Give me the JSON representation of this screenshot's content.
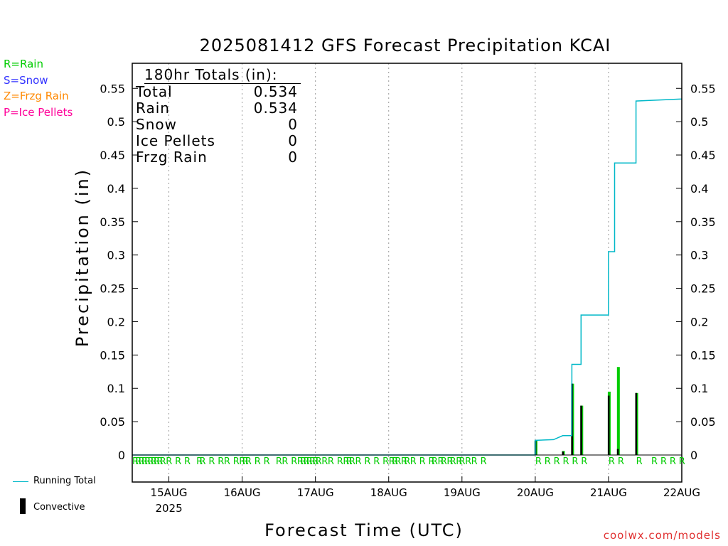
{
  "title": "2025081412 GFS Forecast Precipitation KCAI",
  "legend_types": [
    {
      "text": "R=Rain",
      "color": "#00cc00"
    },
    {
      "text": "S=Snow",
      "color": "#3333ff"
    },
    {
      "text": "Z=Frzg Rain",
      "color": "#ff8800"
    },
    {
      "text": "P=Ice Pellets",
      "color": "#ff0099"
    }
  ],
  "legend_series": {
    "running_total": "Running Total",
    "convective": "Convective"
  },
  "totals": {
    "header": "180hr Totals (in):",
    "rows": [
      {
        "label": "Total",
        "value": "0.534"
      },
      {
        "label": "Rain",
        "value": "0.534"
      },
      {
        "label": "Snow",
        "value": "0"
      },
      {
        "label": "Ice Pellets",
        "value": "0"
      },
      {
        "label": "Frzg Rain",
        "value": "0"
      }
    ]
  },
  "credit": "coolwx.com/models",
  "colors": {
    "running_total": "#00b8c8",
    "rain_bar": "#00cc00",
    "convective": "#000000"
  },
  "chart_data": {
    "type": "bar",
    "xlabel": "Forecast Time (UTC)",
    "ylabel": "Precipitation (in)",
    "x_range_hours": [
      -12,
      168
    ],
    "ylim": [
      0,
      0.59
    ],
    "y_ticks": [
      "0",
      "0.05",
      "0.1",
      "0.15",
      "0.2",
      "0.25",
      "0.3",
      "0.35",
      "0.4",
      "0.45",
      "0.5",
      "0.55"
    ],
    "x_ticks": [
      {
        "hour": 0,
        "label": "15AUG",
        "sublabel": "2025"
      },
      {
        "hour": 24,
        "label": "16AUG"
      },
      {
        "hour": 48,
        "label": "17AUG"
      },
      {
        "hour": 72,
        "label": "18AUG"
      },
      {
        "hour": 96,
        "label": "19AUG"
      },
      {
        "hour": 120,
        "label": "20AUG"
      },
      {
        "hour": 144,
        "label": "21AUG"
      },
      {
        "hour": 168,
        "label": "22AUG"
      }
    ],
    "grid": "vertical dotted at day boundaries",
    "series": [
      {
        "name": "Running Total",
        "type": "line",
        "points": [
          [
            -12,
            0
          ],
          [
            120,
            0
          ],
          [
            120,
            0.022
          ],
          [
            126,
            0.023
          ],
          [
            129,
            0.029
          ],
          [
            132,
            0.029
          ],
          [
            132,
            0.136
          ],
          [
            135,
            0.136
          ],
          [
            135,
            0.21
          ],
          [
            144,
            0.21
          ],
          [
            144,
            0.305
          ],
          [
            146,
            0.305
          ],
          [
            146,
            0.438
          ],
          [
            153,
            0.438
          ],
          [
            153,
            0.531
          ],
          [
            168,
            0.534
          ]
        ]
      },
      {
        "name": "Rain",
        "type": "bar",
        "x": [
          120,
          129,
          132,
          135,
          144,
          147,
          153
        ],
        "values": [
          0.022,
          0.006,
          0.107,
          0.074,
          0.095,
          0.132,
          0.093
        ]
      },
      {
        "name": "Convective",
        "type": "bar",
        "x": [
          120,
          129,
          132,
          135,
          144,
          147,
          153
        ],
        "values": [
          0.021,
          0.005,
          0.107,
          0.074,
          0.089,
          0.009,
          0.093
        ]
      }
    ],
    "precip_type_markers": {
      "text": "R",
      "hours": [
        -12,
        -11,
        -10,
        -9,
        -8,
        -7,
        -6,
        -5,
        -4,
        -3,
        -1,
        2,
        5,
        9,
        10,
        13,
        16,
        18,
        21,
        23,
        24,
        25,
        28,
        31,
        35,
        37,
        40,
        42,
        43,
        44,
        45,
        46,
        47,
        48,
        50,
        52,
        55,
        57,
        58,
        59,
        61,
        64,
        67,
        70,
        72,
        73,
        74,
        76,
        77,
        79,
        82,
        85,
        86,
        88,
        89,
        91,
        92,
        94,
        95,
        97,
        99,
        102,
        120,
        123,
        126,
        129,
        132,
        135,
        144,
        147,
        153,
        158,
        161,
        164,
        167
      ]
    }
  }
}
